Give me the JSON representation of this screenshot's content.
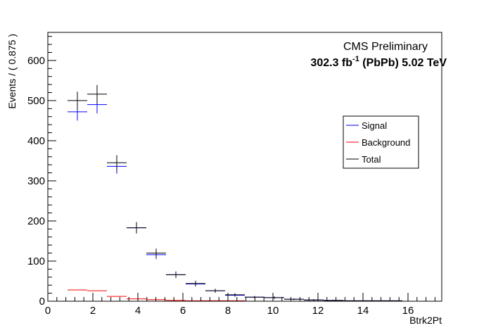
{
  "chart_data": {
    "type": "scatter",
    "title": "",
    "annotations": {
      "line1": "CMS Preliminary",
      "line2_prefix": "302.3 fb",
      "line2_sup": "-1",
      "line2_suffix": " (PbPb) 5.02 TeV"
    },
    "xlabel": "Btrk2Pt",
    "ylabel": "Events / ( 0.875 )",
    "xlim": [
      0,
      17.5
    ],
    "ylim": [
      0,
      670
    ],
    "x_ticks": [
      0,
      2,
      4,
      6,
      8,
      10,
      12,
      14,
      16
    ],
    "y_ticks": [
      0,
      100,
      200,
      300,
      400,
      500,
      600
    ],
    "bin_width": 0.875,
    "grid": false,
    "legend_position": "right",
    "series": [
      {
        "name": "Signal",
        "color": "#0000ff",
        "x": [
          1.3125,
          2.1875,
          3.0625,
          3.9375,
          4.8125,
          5.6875,
          6.5625,
          7.4375,
          8.3125,
          9.1875,
          10.0625,
          10.9375,
          11.8125,
          12.6875,
          13.5625,
          14.4375,
          15.3125
        ],
        "values": [
          472,
          490,
          336,
          183,
          116,
          66,
          43,
          26,
          15,
          10,
          9,
          5,
          3,
          2,
          1,
          1,
          1
        ],
        "errors": [
          22,
          22,
          18,
          14,
          11,
          8,
          6,
          5,
          4,
          3,
          3,
          2,
          2,
          1,
          1,
          1,
          1
        ]
      },
      {
        "name": "Background",
        "color": "#ff0000",
        "x": [
          1.3125,
          2.1875,
          3.0625,
          3.9375,
          4.8125,
          5.6875,
          6.5625,
          7.4375,
          8.3125,
          9.1875,
          10.0625,
          10.9375,
          11.8125,
          12.6875,
          13.5625,
          14.4375,
          15.3125
        ],
        "values": [
          28,
          26,
          12,
          6,
          4,
          2,
          1,
          1,
          1,
          0,
          0,
          0,
          0,
          0,
          0,
          0,
          0
        ],
        "errors": [
          0,
          0,
          0,
          0,
          0,
          0,
          0,
          0,
          0,
          0,
          0,
          0,
          0,
          0,
          0,
          0,
          0
        ]
      },
      {
        "name": "Total",
        "color": "#000000",
        "x": [
          1.3125,
          2.1875,
          3.0625,
          3.9375,
          4.8125,
          5.6875,
          6.5625,
          7.4375,
          8.3125,
          9.1875,
          10.0625,
          10.9375,
          11.8125,
          12.6875,
          13.5625,
          14.4375,
          15.3125,
          16.1875,
          17.0625
        ],
        "values": [
          500,
          516,
          345,
          183,
          120,
          66,
          44,
          26,
          16,
          10,
          9,
          5,
          3,
          2,
          1,
          1,
          1,
          0,
          0
        ],
        "errors": [
          22,
          23,
          19,
          14,
          11,
          8,
          7,
          5,
          4,
          3,
          3,
          2,
          2,
          1,
          1,
          1,
          1,
          0,
          0
        ]
      }
    ]
  }
}
